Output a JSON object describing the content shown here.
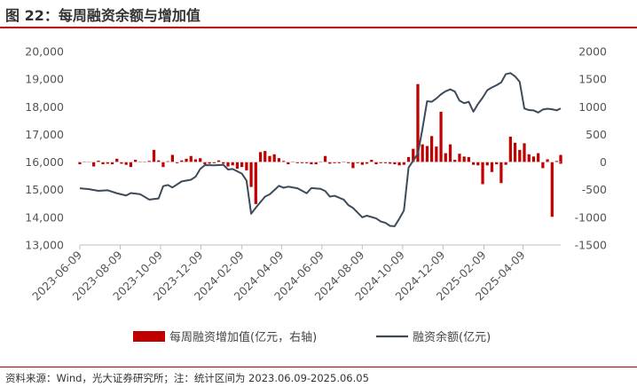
{
  "figure": {
    "title": "图 22：每周融资余额与增加值",
    "source": "资料来源：Wind，光大证券研究所；注：统计区间为 2023.06.09-2025.06.05"
  },
  "chart_data": {
    "type": "bar+line",
    "title": "",
    "left_axis": {
      "ylim": [
        13000,
        20000
      ],
      "ticks": [
        "13,000",
        "14,000",
        "15,000",
        "16,000",
        "17,000",
        "18,000",
        "19,000",
        "20,000"
      ]
    },
    "right_axis": {
      "ylim": [
        -1500,
        2000
      ],
      "ticks": [
        "-1500",
        "-1000",
        "-500",
        "0",
        "500",
        "1000",
        "1500",
        "2000"
      ]
    },
    "x_ticks": [
      "2023-06-09",
      "2023-08-09",
      "2023-10-09",
      "2023-12-09",
      "2024-02-09",
      "2024-04-09",
      "2024-06-09",
      "2024-08-09",
      "2024-10-09",
      "2024-12-09",
      "2025-02-09",
      "2025-04-09"
    ],
    "x_range": [
      "2023-06-09",
      "2025-06-05"
    ],
    "grid": false,
    "legend_position": "bottom",
    "series": [
      {
        "name": "每周融资增加值(亿元，右轴)",
        "type": "bar",
        "axis": "right",
        "color": "#c00000",
        "points": [
          [
            "2023-06-09",
            -40
          ],
          [
            "2023-06-16",
            10
          ],
          [
            "2023-06-23",
            5
          ],
          [
            "2023-06-30",
            -80
          ],
          [
            "2023-07-07",
            25
          ],
          [
            "2023-07-14",
            -40
          ],
          [
            "2023-07-21",
            -30
          ],
          [
            "2023-07-28",
            -40
          ],
          [
            "2023-08-04",
            60
          ],
          [
            "2023-08-11",
            -30
          ],
          [
            "2023-08-18",
            -50
          ],
          [
            "2023-08-25",
            -90
          ],
          [
            "2023-09-01",
            40
          ],
          [
            "2023-09-08",
            10
          ],
          [
            "2023-09-15",
            10
          ],
          [
            "2023-09-22",
            20
          ],
          [
            "2023-09-29",
            220
          ],
          [
            "2023-10-06",
            30
          ],
          [
            "2023-10-13",
            -90
          ],
          [
            "2023-10-20",
            15
          ],
          [
            "2023-10-27",
            130
          ],
          [
            "2023-11-03",
            -20
          ],
          [
            "2023-11-10",
            30
          ],
          [
            "2023-11-17",
            60
          ],
          [
            "2023-11-24",
            110
          ],
          [
            "2023-12-01",
            50
          ],
          [
            "2023-12-08",
            70
          ],
          [
            "2023-12-15",
            -40
          ],
          [
            "2023-12-22",
            -30
          ],
          [
            "2023-12-29",
            -20
          ],
          [
            "2024-01-05",
            30
          ],
          [
            "2024-01-12",
            -30
          ],
          [
            "2024-01-19",
            -80
          ],
          [
            "2024-01-26",
            -60
          ],
          [
            "2024-02-02",
            -120
          ],
          [
            "2024-02-09",
            -90
          ],
          [
            "2024-02-16",
            -150
          ],
          [
            "2024-02-23",
            -450
          ],
          [
            "2024-03-01",
            -760
          ],
          [
            "2024-03-08",
            180
          ],
          [
            "2024-03-15",
            200
          ],
          [
            "2024-03-22",
            110
          ],
          [
            "2024-03-29",
            140
          ],
          [
            "2024-04-05",
            70
          ],
          [
            "2024-04-12",
            20
          ],
          [
            "2024-04-19",
            -40
          ],
          [
            "2024-04-26",
            10
          ],
          [
            "2024-05-03",
            -20
          ],
          [
            "2024-05-10",
            -20
          ],
          [
            "2024-05-17",
            -20
          ],
          [
            "2024-05-24",
            -40
          ],
          [
            "2024-05-31",
            -40
          ],
          [
            "2024-06-07",
            10
          ],
          [
            "2024-06-14",
            110
          ],
          [
            "2024-06-21",
            -30
          ],
          [
            "2024-06-28",
            -20
          ],
          [
            "2024-07-05",
            -20
          ],
          [
            "2024-07-12",
            10
          ],
          [
            "2024-07-19",
            -20
          ],
          [
            "2024-07-26",
            -110
          ],
          [
            "2024-08-02",
            -20
          ],
          [
            "2024-08-09",
            -50
          ],
          [
            "2024-08-16",
            -30
          ],
          [
            "2024-08-23",
            40
          ],
          [
            "2024-08-30",
            -40
          ],
          [
            "2024-09-06",
            -20
          ],
          [
            "2024-09-13",
            -20
          ],
          [
            "2024-09-20",
            -30
          ],
          [
            "2024-09-27",
            -40
          ],
          [
            "2024-10-04",
            -60
          ],
          [
            "2024-10-11",
            -50
          ],
          [
            "2024-10-18",
            90
          ],
          [
            "2024-10-25",
            240
          ],
          [
            "2024-11-01",
            1410
          ],
          [
            "2024-11-08",
            320
          ],
          [
            "2024-11-15",
            290
          ],
          [
            "2024-11-22",
            470
          ],
          [
            "2024-11-29",
            280
          ],
          [
            "2024-12-06",
            910
          ],
          [
            "2024-12-13",
            160
          ],
          [
            "2024-12-20",
            320
          ],
          [
            "2024-12-27",
            40
          ],
          [
            "2025-01-03",
            150
          ],
          [
            "2025-01-10",
            100
          ],
          [
            "2025-01-17",
            90
          ],
          [
            "2025-01-24",
            -50
          ],
          [
            "2025-01-31",
            -60
          ],
          [
            "2025-02-07",
            -400
          ],
          [
            "2025-02-14",
            -60
          ],
          [
            "2025-02-21",
            -180
          ],
          [
            "2025-02-28",
            -40
          ],
          [
            "2025-03-07",
            -380
          ],
          [
            "2025-03-14",
            -50
          ],
          [
            "2025-03-21",
            460
          ],
          [
            "2025-03-28",
            350
          ],
          [
            "2025-04-04",
            220
          ],
          [
            "2025-04-11",
            340
          ],
          [
            "2025-04-18",
            140
          ],
          [
            "2025-04-25",
            100
          ],
          [
            "2025-05-02",
            160
          ],
          [
            "2025-05-09",
            -110
          ],
          [
            "2025-05-16",
            50
          ],
          [
            "2025-05-23",
            -990
          ],
          [
            "2025-05-30",
            20
          ],
          [
            "2025-06-05",
            -20
          ],
          [
            "2025-06-05",
            90
          ],
          [
            "2025-06-05",
            -30
          ],
          [
            "2025-06-05",
            130
          ]
        ]
      },
      {
        "name": "融资余额(亿元)",
        "type": "line",
        "axis": "left",
        "color": "#3d4a5a",
        "points": [
          [
            "2023-06-09",
            15050
          ],
          [
            "2023-06-23",
            15020
          ],
          [
            "2023-07-07",
            14960
          ],
          [
            "2023-07-21",
            14980
          ],
          [
            "2023-08-04",
            14870
          ],
          [
            "2023-08-18",
            14790
          ],
          [
            "2023-08-25",
            14880
          ],
          [
            "2023-09-08",
            14840
          ],
          [
            "2023-09-22",
            14640
          ],
          [
            "2023-10-06",
            14680
          ],
          [
            "2023-10-13",
            15130
          ],
          [
            "2023-10-20",
            15170
          ],
          [
            "2023-10-27",
            15080
          ],
          [
            "2023-11-10",
            15300
          ],
          [
            "2023-11-24",
            15360
          ],
          [
            "2023-12-01",
            15470
          ],
          [
            "2023-12-08",
            15750
          ],
          [
            "2023-12-15",
            15890
          ],
          [
            "2023-12-29",
            15880
          ],
          [
            "2024-01-12",
            15900
          ],
          [
            "2024-01-19",
            15730
          ],
          [
            "2024-01-26",
            15750
          ],
          [
            "2024-02-09",
            15580
          ],
          [
            "2024-02-16",
            15330
          ],
          [
            "2024-02-23",
            14130
          ],
          [
            "2024-03-01",
            14350
          ],
          [
            "2024-03-15",
            14750
          ],
          [
            "2024-03-22",
            14830
          ],
          [
            "2024-04-05",
            15140
          ],
          [
            "2024-04-12",
            15070
          ],
          [
            "2024-04-19",
            15110
          ],
          [
            "2024-05-03",
            15050
          ],
          [
            "2024-05-17",
            14870
          ],
          [
            "2024-05-24",
            15060
          ],
          [
            "2024-06-07",
            15030
          ],
          [
            "2024-06-14",
            14950
          ],
          [
            "2024-06-21",
            14750
          ],
          [
            "2024-06-28",
            14780
          ],
          [
            "2024-07-12",
            14640
          ],
          [
            "2024-07-19",
            14440
          ],
          [
            "2024-07-26",
            14340
          ],
          [
            "2024-08-02",
            14170
          ],
          [
            "2024-08-09",
            14000
          ],
          [
            "2024-08-16",
            14060
          ],
          [
            "2024-08-30",
            13960
          ],
          [
            "2024-09-06",
            13850
          ],
          [
            "2024-09-13",
            13800
          ],
          [
            "2024-09-20",
            13690
          ],
          [
            "2024-09-27",
            13680
          ],
          [
            "2024-10-04",
            13950
          ],
          [
            "2024-10-11",
            14250
          ],
          [
            "2024-10-18",
            15800
          ],
          [
            "2024-10-25",
            16050
          ],
          [
            "2024-11-01",
            16300
          ],
          [
            "2024-11-08",
            17200
          ],
          [
            "2024-11-15",
            18200
          ],
          [
            "2024-11-22",
            18180
          ],
          [
            "2024-11-29",
            18300
          ],
          [
            "2024-12-06",
            18450
          ],
          [
            "2024-12-13",
            18560
          ],
          [
            "2024-12-20",
            18630
          ],
          [
            "2024-12-27",
            18550
          ],
          [
            "2025-01-03",
            18220
          ],
          [
            "2025-01-10",
            18130
          ],
          [
            "2025-01-17",
            18180
          ],
          [
            "2025-01-24",
            17820
          ],
          [
            "2025-01-31",
            18100
          ],
          [
            "2025-02-07",
            18330
          ],
          [
            "2025-02-14",
            18600
          ],
          [
            "2025-02-21",
            18700
          ],
          [
            "2025-02-28",
            18780
          ],
          [
            "2025-03-07",
            18880
          ],
          [
            "2025-03-14",
            19180
          ],
          [
            "2025-03-21",
            19220
          ],
          [
            "2025-03-28",
            19100
          ],
          [
            "2025-04-04",
            18900
          ],
          [
            "2025-04-11",
            17940
          ],
          [
            "2025-04-18",
            17880
          ],
          [
            "2025-04-25",
            17870
          ],
          [
            "2025-05-02",
            17790
          ],
          [
            "2025-05-09",
            17900
          ],
          [
            "2025-05-16",
            17930
          ],
          [
            "2025-05-23",
            17910
          ],
          [
            "2025-05-30",
            17870
          ],
          [
            "2025-06-05",
            17940
          ]
        ]
      }
    ]
  }
}
